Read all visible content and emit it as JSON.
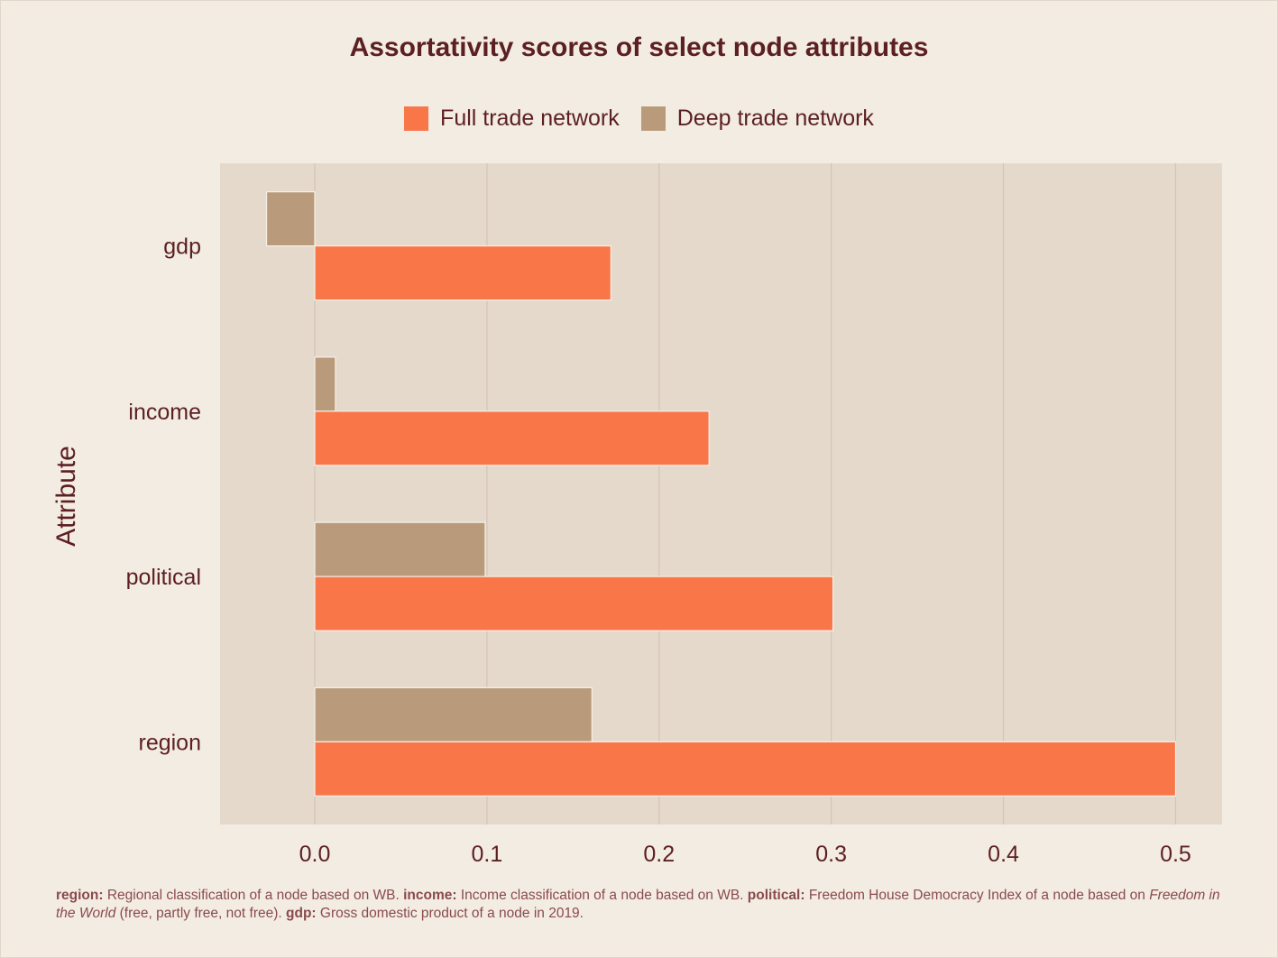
{
  "chart_data": {
    "type": "bar",
    "orientation": "horizontal",
    "title": "Assortativity scores of select node attributes",
    "xlabel": "",
    "ylabel": "Attribute",
    "categories": [
      "gdp",
      "income",
      "political",
      "region"
    ],
    "series": [
      {
        "name": "Full trade network",
        "color": "#f97649",
        "values": [
          0.172,
          0.229,
          0.301,
          0.5
        ]
      },
      {
        "name": "Deep trade network",
        "color": "#b99b7c",
        "values": [
          -0.028,
          0.012,
          0.099,
          0.161
        ]
      }
    ],
    "xlim": [
      -0.055,
      0.527
    ],
    "xticks": [
      0.0,
      0.1,
      0.2,
      0.3,
      0.4,
      0.5
    ],
    "xtick_labels": [
      "0.0",
      "0.1",
      "0.2",
      "0.3",
      "0.4",
      "0.5"
    ],
    "grid": "vertical",
    "legend_position": "top"
  },
  "colors": {
    "page_background": "#f3ece3",
    "panel_background": "#e5d9cb",
    "gridline": "#d3c5b6",
    "text": "#5c1f22",
    "caption_text": "#8a4a4d"
  },
  "caption": [
    {
      "term": "region:",
      "text": " Regional classification of a node based on WB. "
    },
    {
      "term": "income:",
      "text": " Income classification of a node based on WB. "
    },
    {
      "term": "political:",
      "text": " Freedom House Democracy Index of a node based on "
    },
    {
      "italic": "Freedom in the World",
      "text": " (free, partly free, not free). "
    },
    {
      "term": "gdp:",
      "text": " Gross domestic product of a node in 2019."
    }
  ]
}
